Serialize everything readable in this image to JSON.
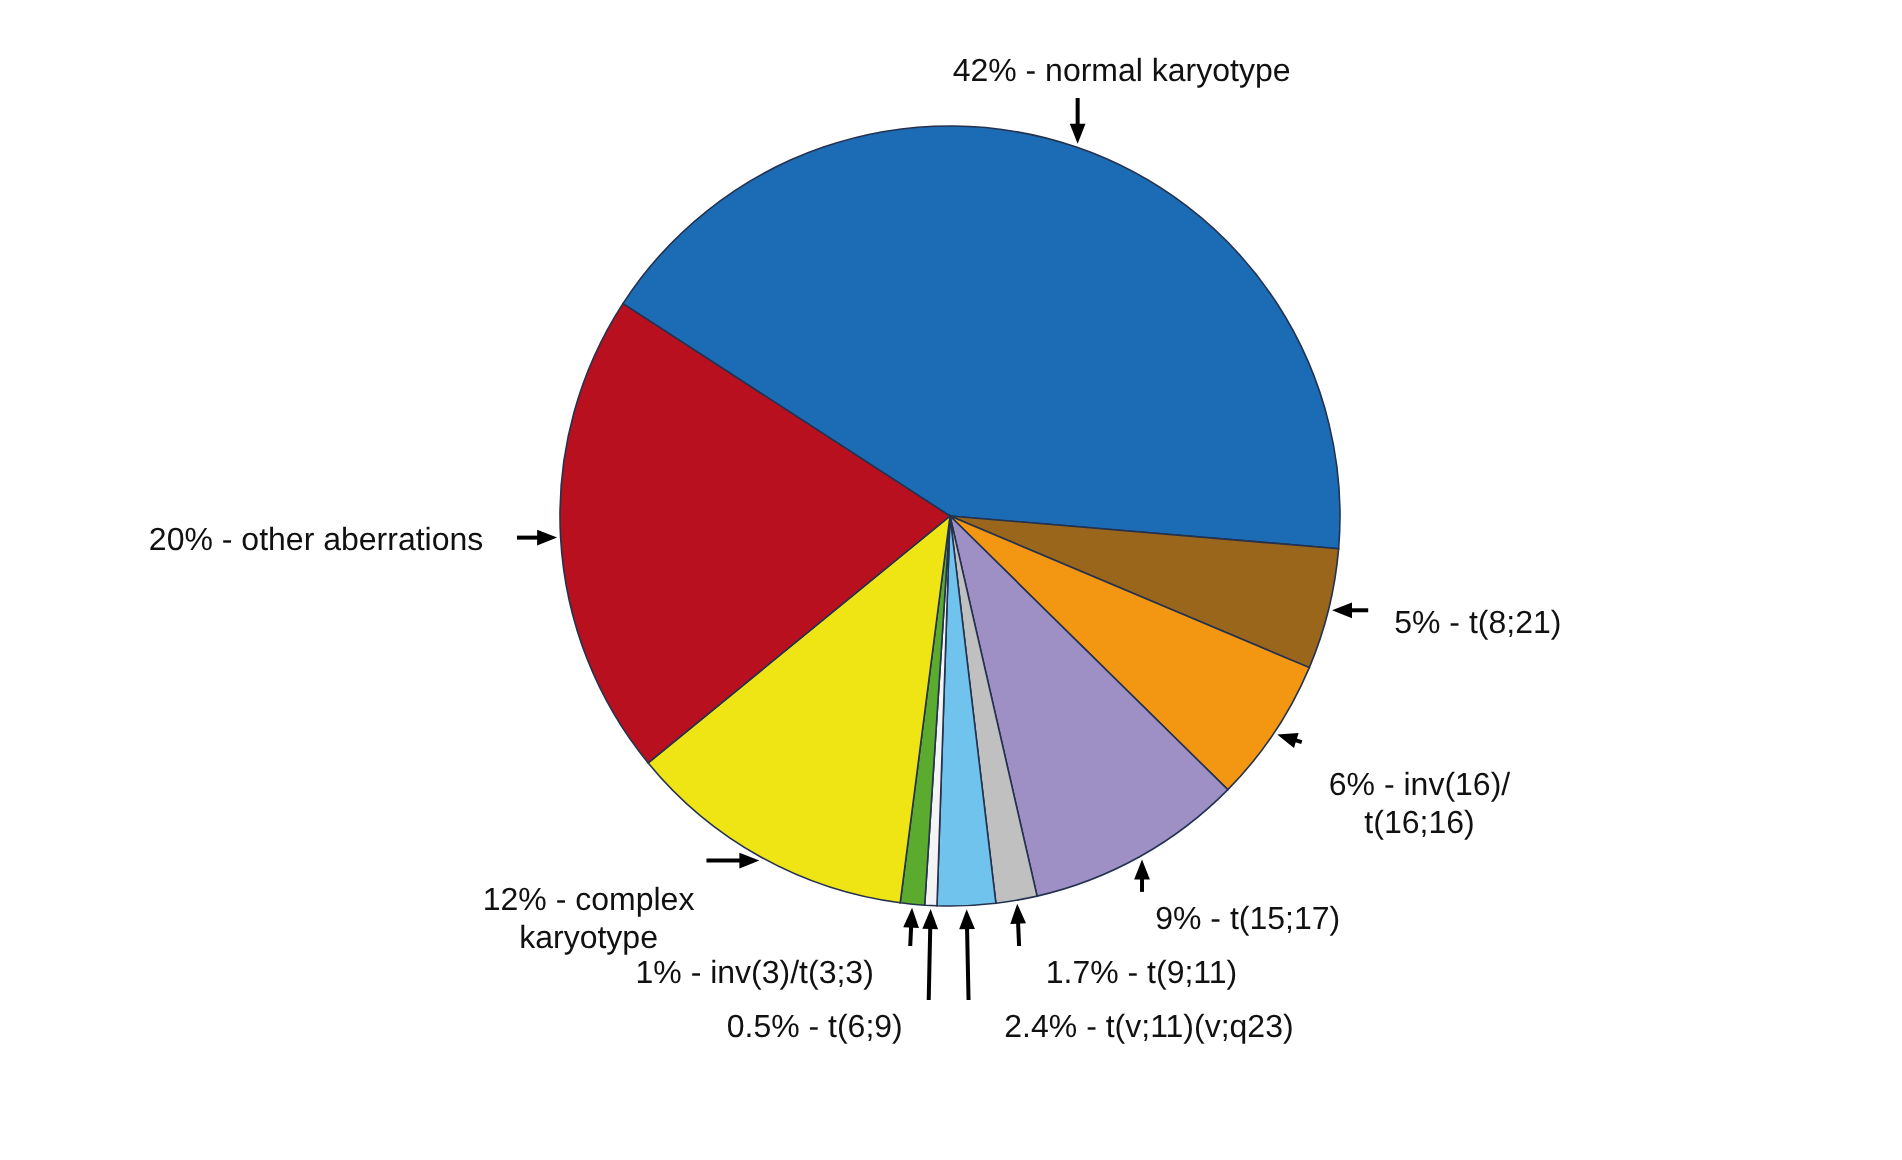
{
  "chart_data": {
    "type": "pie",
    "categories": [
      "42% - normal karyotype",
      "5% - t(8;21)",
      "6% - inv(16)/\nt(16;16)",
      "9% - t(15;17)",
      "1.7% - t(9;11)",
      "2.4% - t(v;11)(v;q23)",
      "0.5% - t(6;9)",
      "1% - inv(3)/t(3;3)",
      "12% - complex\nkaryotype",
      "20% - other aberrations"
    ],
    "values": [
      42,
      5,
      6,
      9,
      1.7,
      2.4,
      0.5,
      1,
      12,
      20
    ],
    "colors": [
      "#1b6cb4",
      "#9a661c",
      "#f39712",
      "#9e8fc4",
      "#c0c0c0",
      "#6fc3ec",
      "#f4f4f4",
      "#5aab2e",
      "#f0e514",
      "#b8101f"
    ]
  }
}
